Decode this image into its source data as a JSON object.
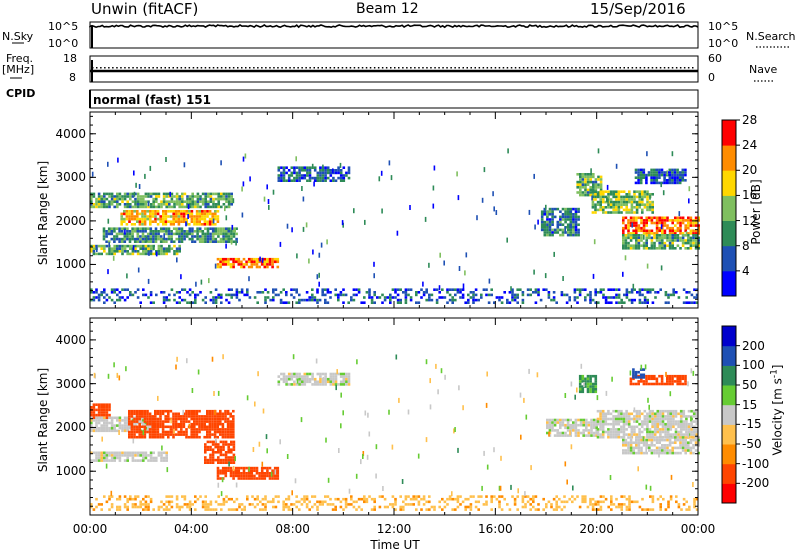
{
  "header": {
    "title": "Unwin (fitACF)",
    "beam": "Beam 12",
    "date": "15/Sep/2016"
  },
  "nsky_panel": {
    "label": "N.Sky",
    "left_ticks": [
      "10^5",
      "10^0"
    ],
    "right_ticks": [
      "10^5",
      "10^0"
    ],
    "right_label": "N.Search"
  },
  "freq_panel": {
    "label": "Freq.",
    "unit": "[MHz]",
    "left_ticks": [
      "18",
      "8"
    ],
    "right_ticks": [
      "60",
      "0"
    ],
    "right_label": "Nave"
  },
  "cpid_panel": {
    "label": "CPID",
    "value": "normal (fast) 151"
  },
  "chart_data": [
    {
      "type": "heatmap",
      "name": "power",
      "ylabel": "Slant Range [km]",
      "yticks": [
        1000,
        2000,
        3000,
        4000
      ],
      "ylim": [
        0,
        4500
      ],
      "xlim": [
        0,
        24
      ],
      "colorbar_label": "Power [dB]",
      "colorbar_ticks": [
        "4",
        "8",
        "12",
        "16",
        "20",
        "24",
        "28"
      ],
      "colorbar_colors": [
        "#0000ff",
        "#1e50b4",
        "#2e8b57",
        "#7fbf5f",
        "#ffd700",
        "#ff8c00",
        "#ff0000"
      ],
      "regions": [
        {
          "t0": 0.0,
          "t1": 5.6,
          "r0": 2350,
          "r1": 2650,
          "value": 14
        },
        {
          "t0": 0.0,
          "t1": 3.5,
          "r0": 1250,
          "r1": 1450,
          "value": 14
        },
        {
          "t0": 1.2,
          "t1": 5.0,
          "r0": 1900,
          "r1": 2250,
          "value": 22
        },
        {
          "t0": 0.5,
          "t1": 5.8,
          "r0": 1550,
          "r1": 1850,
          "value": 12
        },
        {
          "t0": 5.0,
          "t1": 7.4,
          "r0": 950,
          "r1": 1150,
          "value": 24
        },
        {
          "t0": 7.4,
          "t1": 10.2,
          "r0": 2950,
          "r1": 3250,
          "value": 8
        },
        {
          "t0": 17.8,
          "t1": 19.3,
          "r0": 1700,
          "r1": 2300,
          "value": 10
        },
        {
          "t0": 19.2,
          "t1": 20.2,
          "r0": 2600,
          "r1": 3100,
          "value": 14
        },
        {
          "t0": 19.8,
          "t1": 22.2,
          "r0": 2200,
          "r1": 2700,
          "value": 16
        },
        {
          "t0": 21.0,
          "t1": 24.0,
          "r0": 1700,
          "r1": 2100,
          "value": 25
        },
        {
          "t0": 21.0,
          "t1": 24.0,
          "r0": 1400,
          "r1": 1700,
          "value": 14
        },
        {
          "t0": 21.5,
          "t1": 23.5,
          "r0": 2900,
          "r1": 3200,
          "value": 8
        },
        {
          "t0": 0.0,
          "t1": 24.0,
          "r0": 150,
          "r1": 450,
          "value": 8
        }
      ]
    },
    {
      "type": "heatmap",
      "name": "velocity",
      "ylabel": "Slant Range [km]",
      "yticks": [
        1000,
        2000,
        3000,
        4000
      ],
      "ylim": [
        0,
        4500
      ],
      "xlim": [
        0,
        24
      ],
      "xlabel": "Time UT",
      "xticks": [
        "00:00",
        "04:00",
        "08:00",
        "12:00",
        "16:00",
        "20:00",
        "00:00"
      ],
      "colorbar_label": "Velocity [m s^-1]",
      "colorbar_ticks": [
        "-200",
        "-100",
        "-50",
        "-15",
        "15",
        "50",
        "100",
        "200"
      ],
      "colorbar_colors": [
        "#ff0000",
        "#ff4500",
        "#ff8c00",
        "#ffc04d",
        "#c8c8c8",
        "#66cc33",
        "#2e8b57",
        "#1e50b4",
        "#0000cc"
      ],
      "regions": [
        {
          "t0": 0.0,
          "t1": 0.8,
          "r0": 2200,
          "r1": 2550,
          "value": -180
        },
        {
          "t0": 0.0,
          "t1": 2.5,
          "r0": 1900,
          "r1": 2250,
          "value": 0
        },
        {
          "t0": 0.0,
          "t1": 3.0,
          "r0": 1250,
          "r1": 1450,
          "value": 0
        },
        {
          "t0": 1.5,
          "t1": 5.7,
          "r0": 1800,
          "r1": 2400,
          "value": -180
        },
        {
          "t0": 4.5,
          "t1": 5.7,
          "r0": 1200,
          "r1": 1700,
          "value": -180
        },
        {
          "t0": 5.0,
          "t1": 7.4,
          "r0": 850,
          "r1": 1100,
          "value": -180
        },
        {
          "t0": 7.4,
          "t1": 10.2,
          "r0": 3000,
          "r1": 3250,
          "value": 0
        },
        {
          "t0": 18.0,
          "t1": 20.0,
          "r0": 1800,
          "r1": 2200,
          "value": 0
        },
        {
          "t0": 19.3,
          "t1": 20.0,
          "r0": 2800,
          "r1": 3200,
          "value": 60
        },
        {
          "t0": 20.0,
          "t1": 24.0,
          "r0": 1800,
          "r1": 2400,
          "value": 0
        },
        {
          "t0": 21.0,
          "t1": 24.0,
          "r0": 1400,
          "r1": 1800,
          "value": 0
        },
        {
          "t0": 21.3,
          "t1": 23.5,
          "r0": 3000,
          "r1": 3200,
          "value": -180
        },
        {
          "t0": 21.4,
          "t1": 21.9,
          "r0": 3150,
          "r1": 3350,
          "value": 180
        },
        {
          "t0": 0.0,
          "t1": 24.0,
          "r0": 150,
          "r1": 450,
          "value": -40
        }
      ]
    }
  ]
}
